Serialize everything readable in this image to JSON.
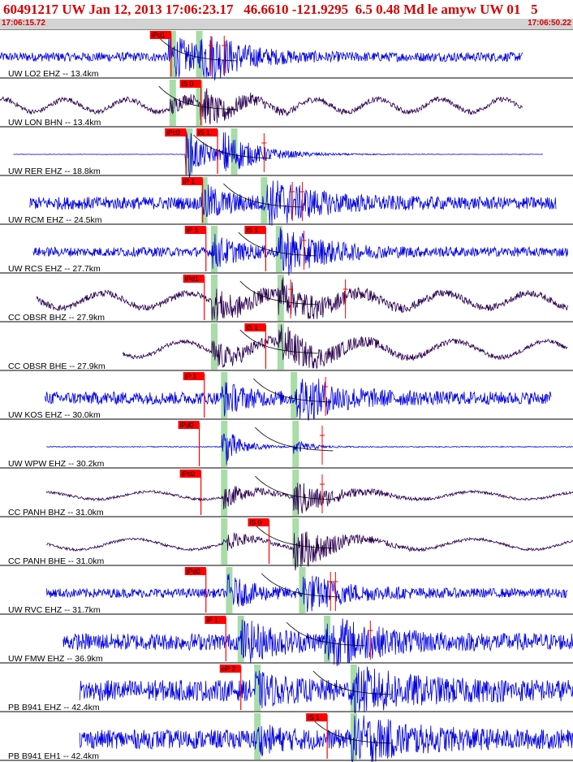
{
  "header": {
    "title": "60491217 UW Jan 12, 2013 17:06:23.17   46.6610 -121.9295  6.5 0.48 Md le amyw UW 01   5",
    "start_time": "17:06:15.72",
    "end_time": "17:06:50.22"
  },
  "colors": {
    "title": "#d40000",
    "trace_vertical": "#0000e0",
    "trace_horizontal": "#2a0050",
    "pick_box": "#ff0000",
    "theory_band": "#a8dca8"
  },
  "chart_data": {
    "type": "seismogram",
    "time_window": {
      "start": "17:06:15.72",
      "end": "17:06:50.22",
      "duration_s": 34.5
    },
    "traces": [
      {
        "label": "UW LO2 EHZ -- 13.4km",
        "component": "vertical",
        "start_s": 0,
        "end_s": 31.5,
        "amp": 0.22,
        "theory_p_s": 10.4,
        "theory_s_s": 12.0,
        "picks": [
          {
            "name": "iPd1",
            "t": 10.3
          }
        ],
        "marks": [
          12.7,
          13.5
        ],
        "bursts": [
          {
            "t": 10.3,
            "a": 1.0,
            "d": 1.6
          },
          {
            "t": 12.2,
            "a": 1.1,
            "d": 2.2
          }
        ]
      },
      {
        "label": "UW LON BHN -- 13.4km",
        "component": "horizontal",
        "start_s": 0,
        "end_s": 31.5,
        "amp": 0.12,
        "wave": 0.3,
        "theory_p_s": 10.4,
        "theory_s_s": 12.0,
        "picks": [
          {
            "name": "iS 0",
            "t": 12.1
          }
        ],
        "marks": [],
        "bursts": [
          {
            "t": 10.4,
            "a": 0.35,
            "d": 1.2
          },
          {
            "t": 12.2,
            "a": 0.8,
            "d": 2.0
          }
        ]
      },
      {
        "label": "UW RER EHZ -- 18.8km",
        "component": "vertical",
        "start_s": 0.8,
        "end_s": 32.7,
        "amp": 0.01,
        "theory_p_s": 11.4,
        "theory_s_s": 14.1,
        "picks": [
          {
            "name": "iPc0",
            "t": 11.2
          },
          {
            "name": "iS 1",
            "t": 13.1
          }
        ],
        "marks": [
          15.9
        ],
        "bursts": [
          {
            "t": 11.3,
            "a": 1.2,
            "d": 1.3
          },
          {
            "t": 13.6,
            "a": 0.9,
            "d": 2.2
          }
        ]
      },
      {
        "label": "UW RCM EHZ -- 24.5km",
        "component": "vertical",
        "start_s": 1.8,
        "end_s": 33.5,
        "amp": 0.3,
        "theory_p_s": 12.3,
        "theory_s_s": 15.9,
        "picks": [
          {
            "name": "iP 1",
            "t": 12.2
          }
        ],
        "marks": [
          17.6,
          18.2
        ],
        "bursts": [
          {
            "t": 12.3,
            "a": 0.7,
            "d": 1.5
          },
          {
            "t": 16.2,
            "a": 1.1,
            "d": 2.5
          }
        ]
      },
      {
        "label": "UW RCS EHZ -- 27.7km",
        "component": "vertical",
        "start_s": 2.0,
        "end_s": 34.2,
        "amp": 0.22,
        "theory_p_s": 12.9,
        "theory_s_s": 16.8,
        "picks": [
          {
            "name": "iP 1",
            "t": 12.4
          },
          {
            "name": "iS 1",
            "t": 16.0
          }
        ],
        "marks": [
          18.3
        ],
        "bursts": [
          {
            "t": 12.9,
            "a": 0.7,
            "d": 1.5
          },
          {
            "t": 16.9,
            "a": 1.1,
            "d": 2.5
          }
        ]
      },
      {
        "label": "CC OBSR BHZ -- 27.9km",
        "component": "horizontal",
        "start_s": 2.2,
        "end_s": 34.2,
        "amp": 0.15,
        "wave": 0.35,
        "theory_p_s": 12.9,
        "theory_s_s": 16.9,
        "picks": [
          {
            "name": "iPd1",
            "t": 12.3
          }
        ],
        "marks": [
          17.5,
          20.8
        ],
        "bursts": [
          {
            "t": 12.9,
            "a": 0.7,
            "d": 2.5
          },
          {
            "t": 16.9,
            "a": 0.7,
            "d": 3.0
          }
        ]
      },
      {
        "label": "CC OBSR BHE -- 27.9km",
        "component": "horizontal",
        "start_s": 7.4,
        "end_s": 34.2,
        "amp": 0.1,
        "wave": 0.38,
        "theory_p_s": 12.9,
        "theory_s_s": 16.9,
        "picks": [
          {
            "name": "iS 1",
            "t": 16.0
          }
        ],
        "marks": [],
        "bursts": [
          {
            "t": 12.9,
            "a": 0.6,
            "d": 2.5
          },
          {
            "t": 16.9,
            "a": 0.8,
            "d": 3.0
          }
        ]
      },
      {
        "label": "UW KOS EHZ -- 30.0km",
        "component": "vertical",
        "start_s": 2.7,
        "end_s": 33.2,
        "amp": 0.3,
        "theory_p_s": 13.5,
        "theory_s_s": 17.7,
        "picks": [
          {
            "name": "iP 1",
            "t": 12.3
          }
        ],
        "marks": [
          19.6
        ],
        "bursts": [
          {
            "t": 13.5,
            "a": 0.6,
            "d": 1.4
          },
          {
            "t": 18.0,
            "a": 1.0,
            "d": 2.4
          }
        ]
      },
      {
        "label": "UW WPW EHZ -- 30.2km",
        "component": "vertical",
        "start_s": 2.8,
        "end_s": 34.6,
        "amp": 0.02,
        "theory_p_s": 13.5,
        "theory_s_s": 17.8,
        "picks": [
          {
            "name": "iPd0",
            "t": 12.0
          }
        ],
        "marks": [
          19.4
        ],
        "bursts": [
          {
            "t": 13.5,
            "a": 1.0,
            "d": 1.0
          },
          {
            "t": 17.8,
            "a": 0.3,
            "d": 1.0
          }
        ]
      },
      {
        "label": "CC PANH BHZ -- 31.0km",
        "component": "horizontal",
        "start_s": 2.8,
        "end_s": 34.8,
        "amp": 0.06,
        "wave": 0.18,
        "theory_p_s": 13.5,
        "theory_s_s": 17.8,
        "picks": [
          {
            "name": "iPc0",
            "t": 12.1
          }
        ],
        "marks": [
          19.4
        ],
        "bursts": [
          {
            "t": 13.6,
            "a": 0.5,
            "d": 1.5
          },
          {
            "t": 17.8,
            "a": 0.9,
            "d": 2.0
          }
        ]
      },
      {
        "label": "CC PANH BHE -- 31.0km",
        "component": "horizontal",
        "start_s": 2.8,
        "end_s": 34.8,
        "amp": 0.06,
        "wave": 0.25,
        "theory_p_s": 13.5,
        "theory_s_s": 17.8,
        "picks": [
          {
            "name": "iS 0",
            "t": 16.2
          }
        ],
        "marks": [],
        "bursts": [
          {
            "t": 13.6,
            "a": 0.4,
            "d": 1.5
          },
          {
            "t": 17.8,
            "a": 1.1,
            "d": 2.2
          }
        ]
      },
      {
        "label": "UW RVC EHZ -- 31.7km",
        "component": "vertical",
        "start_s": 2.8,
        "end_s": 34.2,
        "amp": 0.22,
        "theory_p_s": 13.8,
        "theory_s_s": 18.2,
        "picks": [
          {
            "name": "iPd0",
            "t": 12.4
          }
        ],
        "marks": [
          19.9,
          20.2
        ],
        "bursts": [
          {
            "t": 13.8,
            "a": 0.7,
            "d": 1.5
          },
          {
            "t": 18.4,
            "a": 0.8,
            "d": 2.4
          }
        ]
      },
      {
        "label": "UW FMW EHZ -- 36.9km",
        "component": "vertical",
        "start_s": 3.8,
        "end_s": 35.8,
        "amp": 0.4,
        "theory_p_s": 14.5,
        "theory_s_s": 19.7,
        "picks": [
          {
            "name": "iP 1",
            "t": 13.6
          }
        ],
        "marks": [
          22.3
        ],
        "bursts": [
          {
            "t": 14.6,
            "a": 0.8,
            "d": 2.0
          },
          {
            "t": 19.7,
            "a": 1.1,
            "d": 2.6
          }
        ]
      },
      {
        "label": "PB B941 EHZ -- 42.4km",
        "component": "vertical",
        "start_s": 4.8,
        "end_s": 36.5,
        "amp": 0.5,
        "theory_p_s": 15.5,
        "theory_s_s": 21.3,
        "picks": [
          {
            "name": "eP 2",
            "t": 14.5
          }
        ],
        "marks": [],
        "bursts": [
          {
            "t": 15.5,
            "a": 0.5,
            "d": 1.5
          },
          {
            "t": 21.3,
            "a": 0.9,
            "d": 3.0
          }
        ]
      },
      {
        "label": "PB B941 EH1 -- 42.4km",
        "component": "vertical",
        "start_s": 4.8,
        "end_s": 36.5,
        "amp": 0.45,
        "theory_p_s": 15.5,
        "theory_s_s": 21.3,
        "picks": [
          {
            "name": "iS 1",
            "t": 19.7
          }
        ],
        "marks": [],
        "bursts": [
          {
            "t": 15.5,
            "a": 0.4,
            "d": 1.5
          },
          {
            "t": 21.3,
            "a": 1.0,
            "d": 3.0
          }
        ]
      }
    ]
  }
}
